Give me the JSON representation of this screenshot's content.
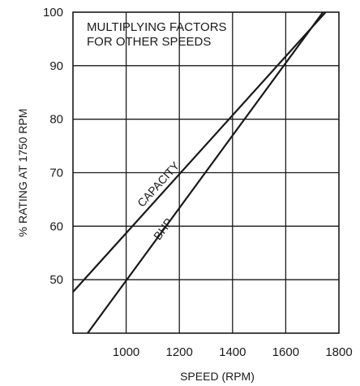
{
  "chart_data": {
    "type": "line",
    "title": "",
    "annotation": [
      "MULTIPLYING FACTORS",
      "FOR OTHER SPEEDS"
    ],
    "xlabel": "SPEED (RPM)",
    "ylabel": "% RATING AT 1750 RPM",
    "xlim": [
      800,
      1800
    ],
    "ylim": [
      40,
      100
    ],
    "x_ticks": [
      1000,
      1200,
      1400,
      1600,
      1800
    ],
    "y_ticks": [
      50,
      60,
      70,
      80,
      90,
      100
    ],
    "grid": true,
    "series": [
      {
        "name": "CAPACITY",
        "x": [
          800,
          1750
        ],
        "y": [
          47.7,
          100
        ]
      },
      {
        "name": "BHP",
        "x": [
          855,
          1740
        ],
        "y": [
          40,
          100
        ]
      }
    ],
    "colors": {
      "line": "#1a1a1a",
      "grid": "#1a1a1a",
      "background": "#ffffff"
    }
  }
}
